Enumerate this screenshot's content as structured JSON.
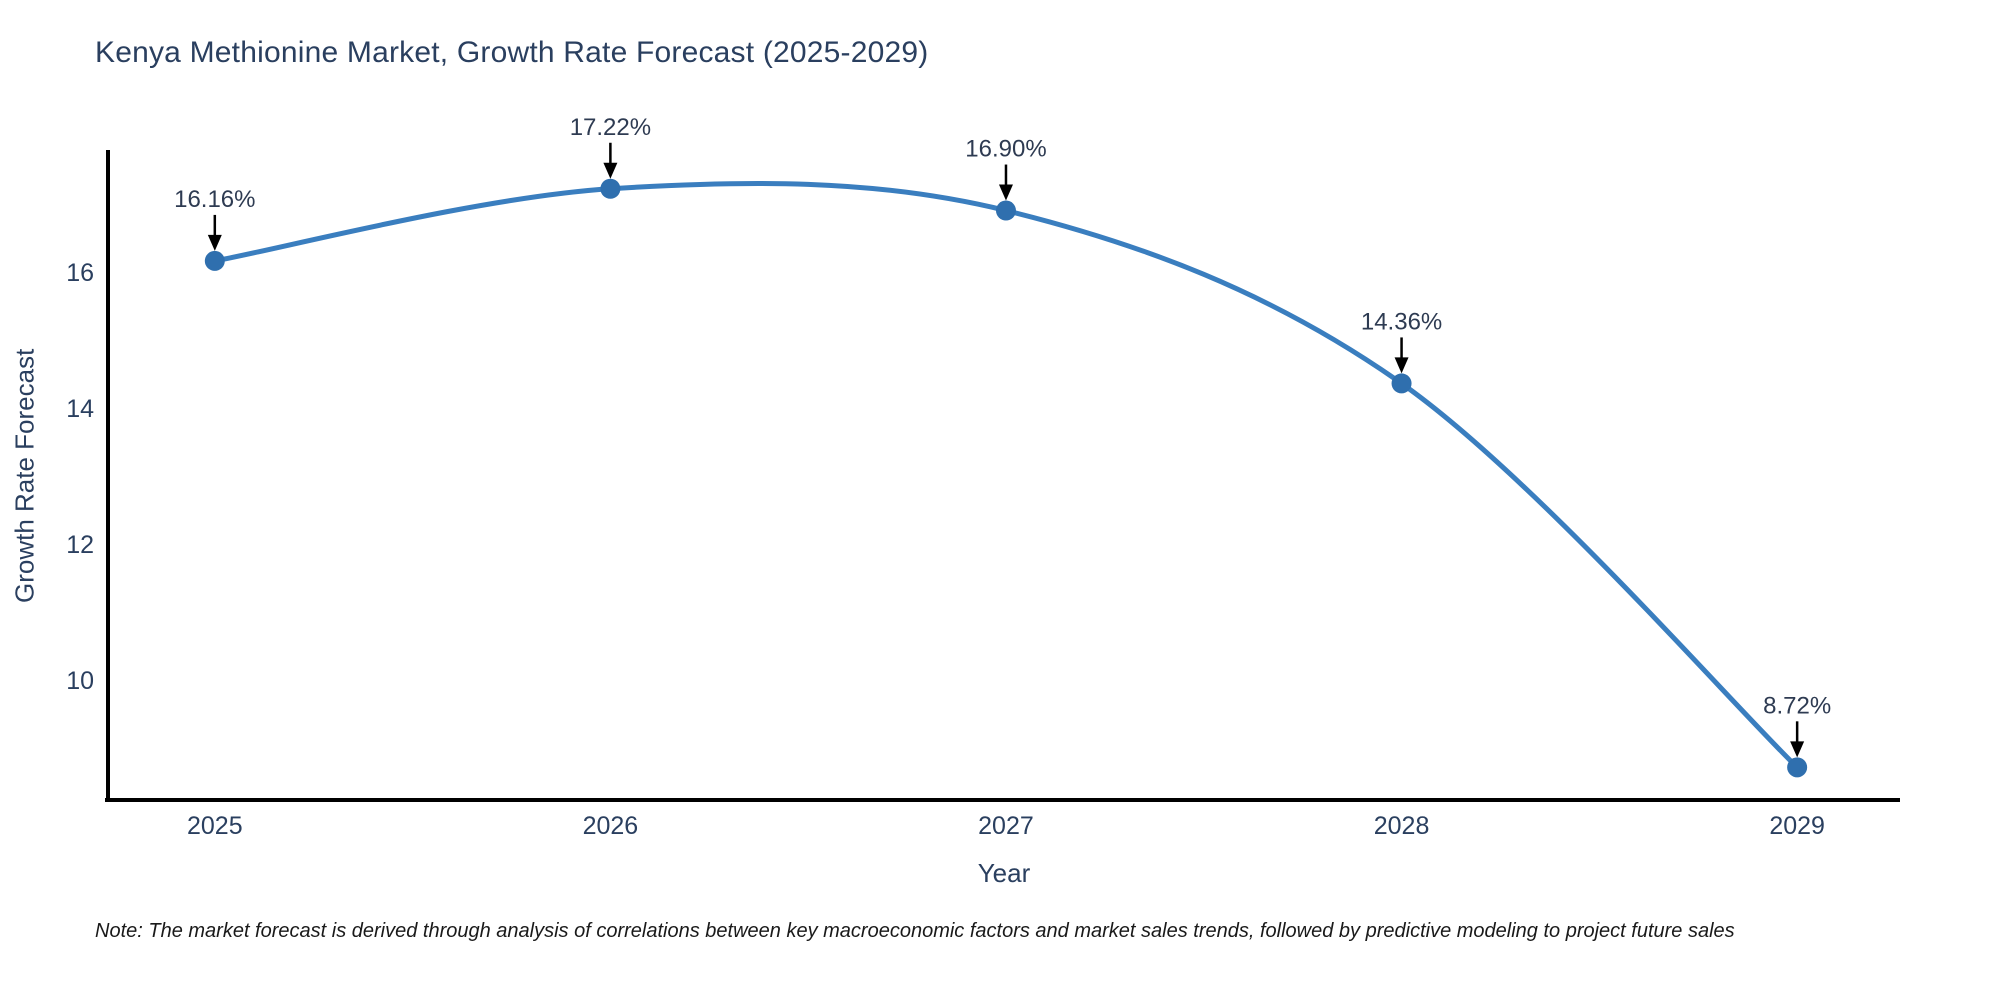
{
  "page": {
    "background": "#ffffff"
  },
  "chart_data": {
    "type": "line",
    "title": "Kenya Methionine Market, Growth Rate Forecast (2025-2029)",
    "xlabel": "Year",
    "ylabel": "Growth Rate Forecast",
    "x": [
      2025,
      2026,
      2027,
      2028,
      2029
    ],
    "y": [
      16.16,
      17.22,
      16.9,
      14.36,
      8.72
    ],
    "point_labels": [
      "16.16%",
      "17.22%",
      "16.90%",
      "14.36%",
      "8.72%"
    ],
    "xtick_labels": [
      "2025",
      "2026",
      "2027",
      "2028",
      "2029"
    ],
    "ytick_values": [
      10,
      12,
      14,
      16
    ],
    "ytick_labels": [
      "10",
      "12",
      "14",
      "16"
    ],
    "xlim": [
      2024.73,
      2029.26
    ],
    "ylim": [
      8.24,
      17.76
    ],
    "curve": "spline",
    "grid": false,
    "legend": false,
    "colors": {
      "line": "#3a7ebf",
      "marker": "#2f6fae",
      "axis": "#000000",
      "arrow": "#000000",
      "annotation_text": "#2e3b52",
      "tick_text": "#2a3f5f",
      "title_text": "#2a3f5f"
    }
  },
  "note": {
    "text": "Note: The market forecast is derived through analysis of correlations between key macroeconomic factors and market sales trends, followed by predictive modeling to project future sales"
  }
}
